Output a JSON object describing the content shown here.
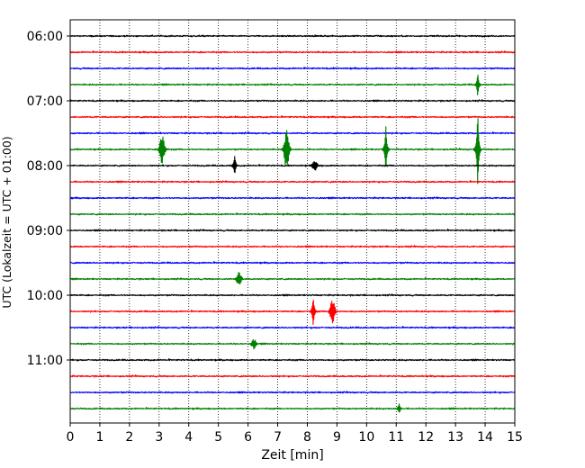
{
  "chart_data": {
    "type": "line",
    "title": "",
    "xlabel": "Zeit  [min]",
    "ylabel": "UTC (Lokalzeit = UTC + 01:00)",
    "xlim": [
      0,
      15
    ],
    "x_ticks": [
      "0",
      "1",
      "2",
      "3",
      "4",
      "5",
      "6",
      "7",
      "8",
      "9",
      "10",
      "11",
      "12",
      "13",
      "14",
      "15"
    ],
    "y_tick_labels": [
      "06:00",
      "07:00",
      "08:00",
      "09:00",
      "10:00",
      "11:00"
    ],
    "y_tick_rows": [
      0,
      4,
      8,
      12,
      16,
      20
    ],
    "grid": "vertical dotted at each minute",
    "line_colors": [
      "#000000",
      "#ff0000",
      "#0000ff",
      "#008000"
    ],
    "rows": [
      {
        "start": "06:00",
        "color": "#000000",
        "events": []
      },
      {
        "start": "06:15",
        "color": "#ff0000",
        "events": []
      },
      {
        "start": "06:30",
        "color": "#0000ff",
        "events": []
      },
      {
        "start": "06:45",
        "color": "#008000",
        "events": [
          {
            "t": 13.75,
            "amp_rows": 0.7,
            "type": "spike"
          }
        ]
      },
      {
        "start": "07:00",
        "color": "#000000",
        "events": []
      },
      {
        "start": "07:15",
        "color": "#ff0000",
        "events": []
      },
      {
        "start": "07:30",
        "color": "#0000ff",
        "events": []
      },
      {
        "start": "07:45",
        "color": "#008000",
        "events": [
          {
            "t": 3.1,
            "amp_rows": 0.9,
            "type": "burst"
          },
          {
            "t": 7.3,
            "amp_rows": 1.2,
            "type": "burst"
          },
          {
            "t": 10.65,
            "amp_rows": 1.4,
            "type": "spike"
          },
          {
            "t": 13.75,
            "amp_rows": 2.4,
            "type": "spike"
          }
        ]
      },
      {
        "start": "08:00",
        "color": "#000000",
        "events": [
          {
            "t": 5.55,
            "amp_rows": 0.6,
            "type": "spike"
          },
          {
            "t": 8.25,
            "amp_rows": 0.3,
            "type": "burst"
          }
        ]
      },
      {
        "start": "08:15",
        "color": "#ff0000",
        "events": []
      },
      {
        "start": "08:30",
        "color": "#0000ff",
        "events": []
      },
      {
        "start": "08:45",
        "color": "#008000",
        "events": []
      },
      {
        "start": "09:00",
        "color": "#000000",
        "events": []
      },
      {
        "start": "09:15",
        "color": "#ff0000",
        "events": []
      },
      {
        "start": "09:30",
        "color": "#0000ff",
        "events": []
      },
      {
        "start": "09:45",
        "color": "#008000",
        "events": [
          {
            "t": 5.7,
            "amp_rows": 0.4,
            "type": "burst"
          }
        ]
      },
      {
        "start": "10:00",
        "color": "#000000",
        "events": []
      },
      {
        "start": "10:15",
        "color": "#ff0000",
        "events": [
          {
            "t": 8.2,
            "amp_rows": 0.9,
            "type": "spike"
          },
          {
            "t": 8.85,
            "amp_rows": 0.75,
            "type": "burst"
          }
        ]
      },
      {
        "start": "10:30",
        "color": "#0000ff",
        "events": []
      },
      {
        "start": "10:45",
        "color": "#008000",
        "events": [
          {
            "t": 6.2,
            "amp_rows": 0.3,
            "type": "burst"
          }
        ]
      },
      {
        "start": "11:00",
        "color": "#000000",
        "events": []
      },
      {
        "start": "11:15",
        "color": "#ff0000",
        "events": []
      },
      {
        "start": "11:30",
        "color": "#0000ff",
        "events": []
      },
      {
        "start": "11:45",
        "color": "#008000",
        "events": [
          {
            "t": 11.1,
            "amp_rows": 0.3,
            "type": "spike"
          }
        ]
      }
    ]
  }
}
